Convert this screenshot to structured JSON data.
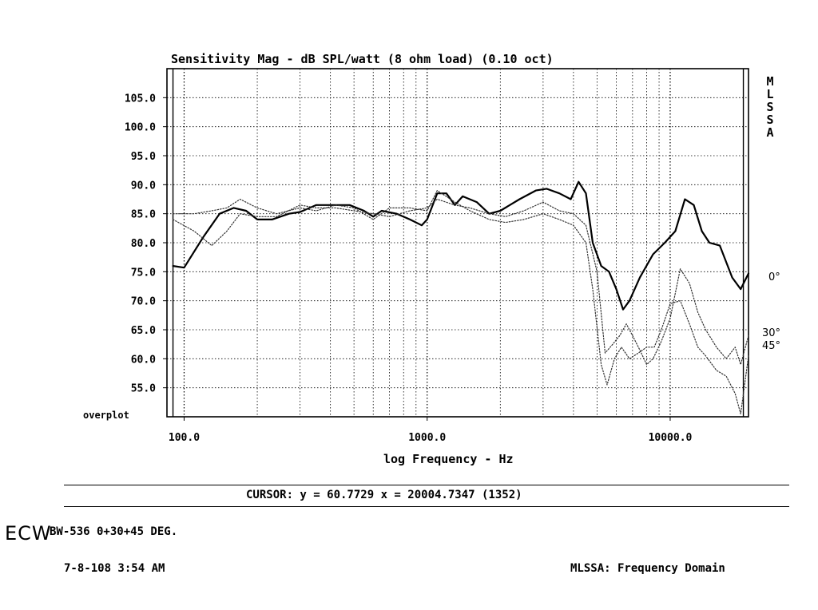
{
  "chart_data": {
    "type": "line",
    "title": "Sensitivity Mag - dB SPL/watt (8 ohm load) (0.10 oct)",
    "xlabel": "log Frequency - Hz",
    "ylabel": "",
    "x_scale": "log",
    "xlim": [
      85,
      21000
    ],
    "ylim": [
      50,
      110
    ],
    "x_tick_labels": [
      "100.0",
      "1000.0",
      "10000.0"
    ],
    "y_tick_labels": [
      "105.0",
      "100.0",
      "95.0",
      "90.0",
      "85.0",
      "80.0",
      "75.0",
      "70.0",
      "65.0",
      "60.0",
      "55.0"
    ],
    "grid": true,
    "series": [
      {
        "name": "0°",
        "style": "solid",
        "points": [
          [
            90,
            76
          ],
          [
            100,
            75.7
          ],
          [
            120,
            81
          ],
          [
            140,
            85
          ],
          [
            160,
            86
          ],
          [
            180,
            85.5
          ],
          [
            200,
            84
          ],
          [
            230,
            84
          ],
          [
            270,
            85
          ],
          [
            300,
            85.3
          ],
          [
            350,
            86.5
          ],
          [
            400,
            86.5
          ],
          [
            480,
            86.5
          ],
          [
            550,
            85.5
          ],
          [
            600,
            84.5
          ],
          [
            650,
            85.5
          ],
          [
            750,
            85
          ],
          [
            850,
            84
          ],
          [
            950,
            83
          ],
          [
            1000,
            84
          ],
          [
            1100,
            88.5
          ],
          [
            1200,
            88.5
          ],
          [
            1300,
            86.5
          ],
          [
            1400,
            88
          ],
          [
            1600,
            87
          ],
          [
            1800,
            85
          ],
          [
            2000,
            85.5
          ],
          [
            2400,
            87.5
          ],
          [
            2800,
            89
          ],
          [
            3100,
            89.3
          ],
          [
            3500,
            88.5
          ],
          [
            3900,
            87.5
          ],
          [
            4200,
            90.5
          ],
          [
            4500,
            88.5
          ],
          [
            4800,
            80
          ],
          [
            5200,
            76
          ],
          [
            5600,
            75
          ],
          [
            6000,
            72
          ],
          [
            6400,
            68.5
          ],
          [
            6800,
            70
          ],
          [
            7500,
            74
          ],
          [
            8500,
            78
          ],
          [
            9500,
            80
          ],
          [
            10500,
            82
          ],
          [
            11500,
            87.5
          ],
          [
            12500,
            86.5
          ],
          [
            13500,
            82
          ],
          [
            14500,
            80
          ],
          [
            16000,
            79.5
          ],
          [
            18000,
            74
          ],
          [
            19500,
            72
          ],
          [
            21000,
            74.7
          ]
        ]
      },
      {
        "name": "30°",
        "style": "dotted",
        "points": [
          [
            90,
            84
          ],
          [
            110,
            82
          ],
          [
            130,
            79.5
          ],
          [
            150,
            82
          ],
          [
            170,
            85
          ],
          [
            200,
            84.5
          ],
          [
            240,
            84.5
          ],
          [
            300,
            86.5
          ],
          [
            350,
            86
          ],
          [
            420,
            86
          ],
          [
            500,
            85.5
          ],
          [
            600,
            85
          ],
          [
            700,
            84.5
          ],
          [
            850,
            85.5
          ],
          [
            1000,
            86
          ],
          [
            1100,
            87.5
          ],
          [
            1300,
            86.5
          ],
          [
            1500,
            86
          ],
          [
            1800,
            85
          ],
          [
            2100,
            84.5
          ],
          [
            2500,
            85.5
          ],
          [
            3000,
            87
          ],
          [
            3500,
            85.5
          ],
          [
            4000,
            85
          ],
          [
            4500,
            83
          ],
          [
            5000,
            75
          ],
          [
            5400,
            61
          ],
          [
            5800,
            62.5
          ],
          [
            6200,
            64
          ],
          [
            6600,
            66
          ],
          [
            7000,
            64
          ],
          [
            7500,
            61.5
          ],
          [
            8000,
            59
          ],
          [
            8500,
            60
          ],
          [
            9200,
            63
          ],
          [
            10000,
            67
          ],
          [
            11000,
            75.5
          ],
          [
            12000,
            73
          ],
          [
            13000,
            68
          ],
          [
            14000,
            65
          ],
          [
            15500,
            62
          ],
          [
            17000,
            60
          ],
          [
            18500,
            62
          ],
          [
            19500,
            59
          ],
          [
            21000,
            64
          ]
        ]
      },
      {
        "name": "45°",
        "style": "dotted",
        "points": [
          [
            90,
            85
          ],
          [
            110,
            85
          ],
          [
            130,
            85.5
          ],
          [
            150,
            86
          ],
          [
            170,
            87.5
          ],
          [
            200,
            86
          ],
          [
            240,
            85
          ],
          [
            300,
            86
          ],
          [
            350,
            85.5
          ],
          [
            420,
            86.5
          ],
          [
            500,
            86
          ],
          [
            600,
            84
          ],
          [
            700,
            86
          ],
          [
            850,
            86
          ],
          [
            1000,
            85.5
          ],
          [
            1100,
            89
          ],
          [
            1300,
            87
          ],
          [
            1500,
            85.5
          ],
          [
            1800,
            84
          ],
          [
            2100,
            83.5
          ],
          [
            2500,
            84
          ],
          [
            3000,
            85
          ],
          [
            3500,
            84
          ],
          [
            4000,
            83
          ],
          [
            4500,
            80
          ],
          [
            4800,
            72
          ],
          [
            5200,
            59
          ],
          [
            5500,
            55.5
          ],
          [
            5900,
            60
          ],
          [
            6300,
            62
          ],
          [
            6800,
            60
          ],
          [
            7400,
            61
          ],
          [
            8000,
            62
          ],
          [
            8600,
            62
          ],
          [
            9200,
            65
          ],
          [
            10000,
            69.5
          ],
          [
            11000,
            70
          ],
          [
            12000,
            66
          ],
          [
            13000,
            62
          ],
          [
            14000,
            60.5
          ],
          [
            15500,
            58
          ],
          [
            17000,
            57
          ],
          [
            18500,
            54
          ],
          [
            19500,
            50.5
          ],
          [
            21000,
            60.5
          ]
        ]
      }
    ]
  },
  "side_label": [
    "M",
    "L",
    "S",
    "S",
    "A"
  ],
  "angle_labels": [
    "0°",
    "30°",
    "45°"
  ],
  "overplot_label": "overplot",
  "cursor_readout": "CURSOR: y = 60.7729 x = 20004.7347 (1352)",
  "handwritten_mark": "ECW",
  "test_description": "BW-536  0+30+45 DEG.",
  "date_time": "7-8-108 3:54 AM",
  "footer_right": "MLSSA: Frequency Domain"
}
